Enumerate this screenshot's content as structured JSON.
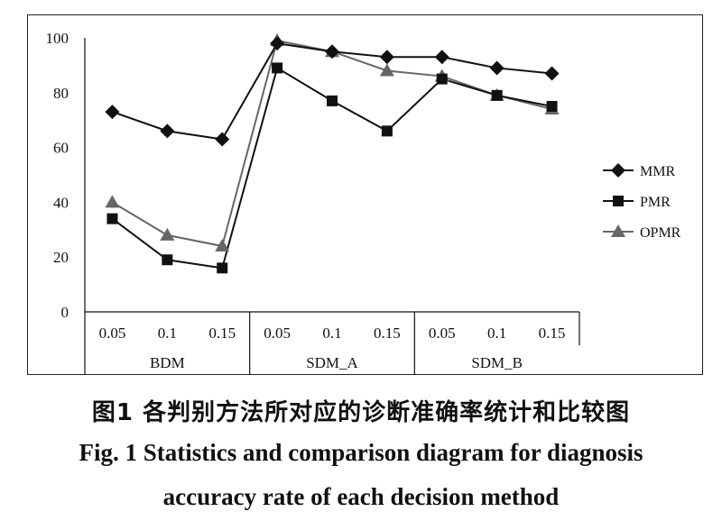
{
  "chart_data": {
    "type": "line",
    "title": "",
    "xlabel": "",
    "ylabel": "",
    "ylim": [
      0,
      100
    ],
    "yticks": [
      "0",
      "20",
      "40",
      "60",
      "80",
      "100"
    ],
    "groups": [
      {
        "label": "BDM",
        "ticks": [
          "0.05",
          "0.1",
          "0.15"
        ]
      },
      {
        "label": "SDM_A",
        "ticks": [
          "0.05",
          "0.1",
          "0.15"
        ]
      },
      {
        "label": "SDM_B",
        "ticks": [
          "0.05",
          "0.1",
          "0.15"
        ]
      }
    ],
    "series": [
      {
        "name": "MMR",
        "marker": "diamond",
        "color": "#111111",
        "values": [
          73,
          66,
          63,
          98,
          95,
          93,
          93,
          89,
          87
        ]
      },
      {
        "name": "PMR",
        "marker": "square",
        "color": "#111111",
        "values": [
          34,
          19,
          16,
          89,
          77,
          66,
          85,
          79,
          75
        ]
      },
      {
        "name": "OPMR",
        "marker": "triangle",
        "color": "#666666",
        "values": [
          40,
          28,
          24,
          99,
          95,
          88,
          86,
          79,
          74
        ]
      }
    ],
    "legend": "right",
    "grid": false
  },
  "caption": {
    "cn": "图1  各判别方法所对应的诊断准确率统计和比较图",
    "en_line1": "Fig. 1  Statistics and comparison diagram for diagnosis",
    "en_line2": "accuracy rate of each decision method"
  }
}
